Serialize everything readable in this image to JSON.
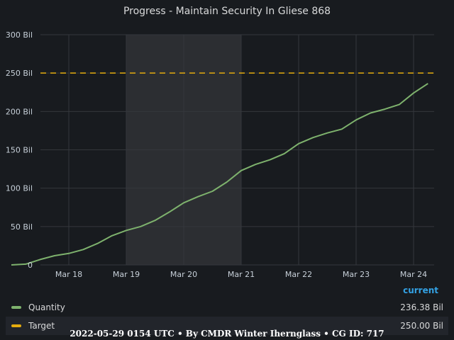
{
  "chart_data": {
    "type": "line",
    "title": "Progress - Maintain Security In Gliese 868",
    "y_ticks": [
      "0",
      "50 Bil",
      "100 Bil",
      "150 Bil",
      "200 Bil",
      "250 Bil",
      "300 Bil"
    ],
    "x_ticks": [
      "Mar 18",
      "Mar 19",
      "Mar 20",
      "Mar 21",
      "Mar 22",
      "Mar 23",
      "Mar 24"
    ],
    "ylim": [
      0,
      300
    ],
    "grid": true,
    "highlight_range": [
      "2022-03-19",
      "2022-03-21"
    ],
    "series": [
      {
        "name": "Quantity",
        "color": "#7eb26d",
        "x": [
          "2022-03-17 00:00",
          "2022-03-17 06:00",
          "2022-03-17 12:00",
          "2022-03-17 18:00",
          "2022-03-18 00:00",
          "2022-03-18 06:00",
          "2022-03-18 12:00",
          "2022-03-18 18:00",
          "2022-03-19 00:00",
          "2022-03-19 06:00",
          "2022-03-19 12:00",
          "2022-03-19 18:00",
          "2022-03-20 00:00",
          "2022-03-20 06:00",
          "2022-03-20 12:00",
          "2022-03-20 18:00",
          "2022-03-21 00:00",
          "2022-03-21 06:00",
          "2022-03-21 12:00",
          "2022-03-21 18:00",
          "2022-03-22 00:00",
          "2022-03-22 06:00",
          "2022-03-22 12:00",
          "2022-03-22 18:00",
          "2022-03-23 00:00",
          "2022-03-23 06:00",
          "2022-03-23 12:00",
          "2022-03-23 18:00",
          "2022-03-24 00:00",
          "2022-03-24 06:00"
        ],
        "values": [
          0,
          1,
          7,
          12,
          15,
          20,
          28,
          38,
          45,
          50,
          58,
          69,
          81,
          89,
          96,
          108,
          123,
          131,
          137,
          145,
          158,
          166,
          172,
          177,
          189,
          198,
          203,
          209,
          224,
          236.38
        ]
      },
      {
        "name": "Target",
        "color": "#e5ac0e",
        "x": [
          "2022-03-17 00:00",
          "2022-03-24 06:00"
        ],
        "values": [
          250,
          250
        ]
      }
    ],
    "legend": {
      "header": "current",
      "rows": [
        {
          "name": "Quantity",
          "value": "236.38 Bil",
          "color": "#7eb26d"
        },
        {
          "name": "Target",
          "value": "250.00 Bil",
          "color": "#e5ac0e"
        }
      ]
    }
  },
  "footer": "2022-05-29 0154 UTC • By CMDR Winter Iherngla‍ss • CG ID: 717"
}
